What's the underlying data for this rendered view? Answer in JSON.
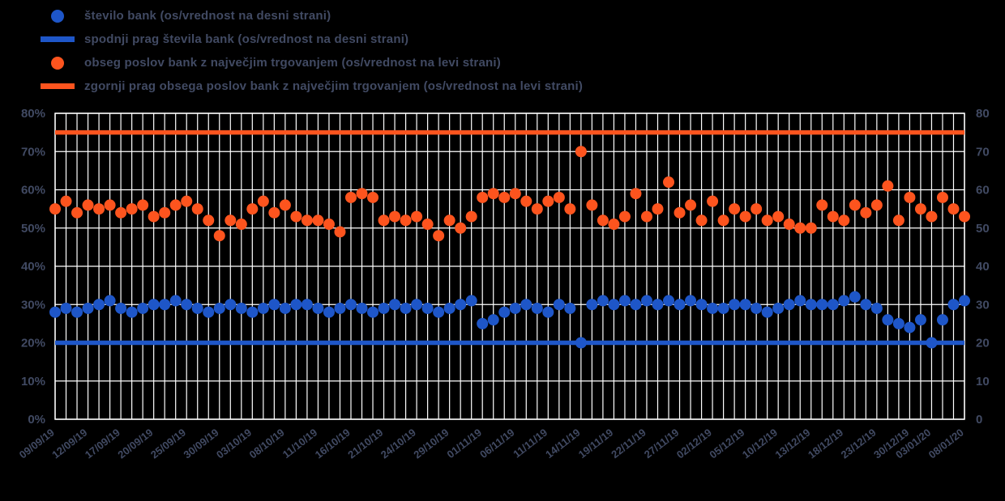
{
  "page": {
    "background": "#000000",
    "text_color": "#414a63",
    "grid_color": "#ffffff"
  },
  "legend": {
    "items": [
      {
        "label": "število bank (os/vrednost na desni strani)",
        "marker": "dot",
        "color": "#1e56c8"
      },
      {
        "label": "spodnji prag števila bank (os/vrednost na desni strani)",
        "marker": "line",
        "color": "#1e56c8"
      },
      {
        "label": "obseg poslov bank z največjim trgovanjem (os/vrednost na levi strani)",
        "marker": "dot",
        "color": "#fd541e"
      },
      {
        "label": "zgornji prag obsega poslov bank z največjim trgovanjem (os/vrednost na levi strani)",
        "marker": "line",
        "color": "#fd541e"
      }
    ]
  },
  "chart_data": {
    "type": "scatter",
    "title": "",
    "xlabel": "",
    "ylabel": "",
    "x": [
      "09/09/19",
      "10/09/19",
      "11/09/19",
      "12/09/19",
      "13/09/19",
      "16/09/19",
      "17/09/19",
      "18/09/19",
      "19/09/19",
      "20/09/19",
      "23/09/19",
      "24/09/19",
      "25/09/19",
      "26/09/19",
      "27/09/19",
      "30/09/19",
      "01/10/19",
      "02/10/19",
      "03/10/19",
      "04/10/19",
      "07/10/19",
      "08/10/19",
      "09/10/19",
      "10/10/19",
      "11/10/19",
      "14/10/19",
      "15/10/19",
      "16/10/19",
      "17/10/19",
      "18/10/19",
      "21/10/19",
      "22/10/19",
      "23/10/19",
      "24/10/19",
      "25/10/19",
      "28/10/19",
      "29/10/19",
      "30/10/19",
      "31/10/19",
      "01/11/19",
      "04/11/19",
      "05/11/19",
      "06/11/19",
      "07/11/19",
      "08/11/19",
      "11/11/19",
      "12/11/19",
      "13/11/19",
      "14/11/19",
      "15/11/19",
      "18/11/19",
      "19/11/19",
      "20/11/19",
      "21/11/19",
      "22/11/19",
      "25/11/19",
      "26/11/19",
      "27/11/19",
      "28/11/19",
      "29/11/19",
      "02/12/19",
      "03/12/19",
      "04/12/19",
      "05/12/19",
      "06/12/19",
      "09/12/19",
      "10/12/19",
      "11/12/19",
      "12/12/19",
      "13/12/19",
      "16/12/19",
      "17/12/19",
      "18/12/19",
      "19/12/19",
      "20/12/19",
      "23/12/19",
      "24/12/19",
      "27/12/19",
      "30/12/19",
      "31/12/19",
      "03/01/20",
      "06/01/20",
      "07/01/20",
      "08/01/20"
    ],
    "series": [
      {
        "key": "volume-share",
        "name": "obseg poslov bank z največjim trgovanjem",
        "axis": "left",
        "marker": "circle",
        "color": "#fd541e",
        "values": [
          55,
          57,
          54,
          56,
          55,
          56,
          54,
          55,
          56,
          53,
          54,
          56,
          57,
          55,
          52,
          48,
          52,
          51,
          55,
          57,
          54,
          56,
          53,
          52,
          52,
          51,
          49,
          58,
          59,
          58,
          52,
          53,
          52,
          53,
          51,
          48,
          52,
          50,
          53,
          58,
          59,
          58,
          59,
          57,
          55,
          57,
          58,
          55,
          70,
          56,
          52,
          51,
          53,
          59,
          53,
          55,
          62,
          54,
          56,
          52,
          57,
          52,
          55,
          53,
          55,
          52,
          53,
          51,
          50,
          50,
          56,
          53,
          52,
          56,
          54,
          56,
          61,
          52,
          58,
          55,
          53,
          58,
          55,
          53
        ]
      },
      {
        "key": "bank-count",
        "name": "število bank",
        "axis": "right",
        "marker": "circle",
        "color": "#1e56c8",
        "values": [
          28,
          29,
          28,
          29,
          30,
          31,
          29,
          28,
          29,
          30,
          30,
          31,
          30,
          29,
          28,
          29,
          30,
          29,
          28,
          29,
          30,
          29,
          30,
          30,
          29,
          28,
          29,
          30,
          29,
          28,
          29,
          30,
          29,
          30,
          29,
          28,
          29,
          30,
          31,
          25,
          26,
          28,
          29,
          30,
          29,
          28,
          30,
          29,
          20,
          30,
          31,
          30,
          31,
          30,
          31,
          30,
          31,
          30,
          31,
          30,
          29,
          29,
          30,
          30,
          29,
          28,
          29,
          30,
          31,
          30,
          30,
          30,
          31,
          32,
          30,
          29,
          26,
          25,
          24,
          26,
          20,
          26,
          30,
          31
        ]
      }
    ],
    "thresholds": [
      {
        "key": "upper-threshold-volume-share",
        "name": "zgornji prag obsega poslov bank z največjim trgovanjem",
        "axis": "left",
        "value": 75,
        "color": "#fd541e"
      },
      {
        "key": "lower-threshold-bank-count",
        "name": "spodnji prag števila bank",
        "axis": "right",
        "value": 20,
        "color": "#1e56c8"
      }
    ],
    "left_axis": {
      "min": 0,
      "max": 80,
      "ticks": [
        0,
        10,
        20,
        30,
        40,
        50,
        60,
        70,
        80
      ],
      "suffix": "%"
    },
    "right_axis": {
      "min": 0,
      "max": 80,
      "ticks": [
        0,
        10,
        20,
        30,
        40,
        50,
        60,
        70,
        80
      ],
      "suffix": ""
    },
    "tick_indices": [
      0,
      3,
      6,
      9,
      12,
      15,
      18,
      21,
      24,
      27,
      30,
      33,
      36,
      39,
      42,
      45,
      48,
      51,
      54,
      57,
      60,
      63,
      66,
      69,
      72,
      75,
      78,
      80,
      83
    ],
    "grid": {
      "vertical": true,
      "horizontal": true
    },
    "legend_position": "top-left"
  }
}
